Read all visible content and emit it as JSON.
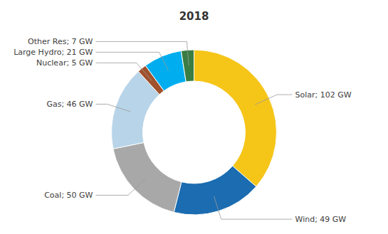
{
  "chart_data": {
    "type": "donut",
    "title": "2018",
    "categories": [
      "Solar; 102 GW",
      "Wind; 49 GW",
      "Coal; 50 GW",
      "Gas; 46 GW",
      "Nuclear; 5 GW",
      "Large Hydro; 21 GW",
      "Other Res; 7 GW"
    ],
    "values": [
      102,
      49,
      50,
      46,
      5,
      21,
      7
    ],
    "colors": [
      "#F5C518",
      "#1B6CB0",
      "#A8A8A8",
      "#B8D4E8",
      "#A0522D",
      "#00AEEF",
      "#3A7D44"
    ]
  }
}
